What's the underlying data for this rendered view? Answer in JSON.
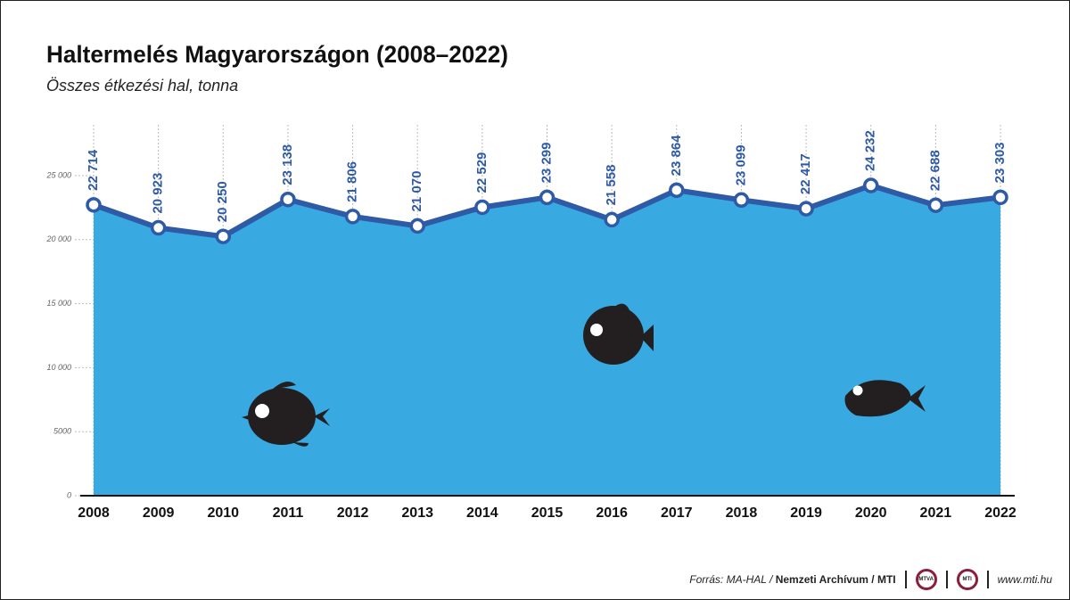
{
  "chart_data": {
    "type": "area",
    "title": "Haltermelés Magyarországon (2008–2022)",
    "subtitle": "Összes étkezési hal, tonna",
    "categories": [
      "2008",
      "2009",
      "2010",
      "2011",
      "2012",
      "2013",
      "2014",
      "2015",
      "2016",
      "2017",
      "2018",
      "2019",
      "2020",
      "2021",
      "2022"
    ],
    "values": [
      22714,
      20923,
      20250,
      23138,
      21806,
      21070,
      22529,
      23299,
      21558,
      23864,
      23099,
      22417,
      24232,
      22688,
      23303
    ],
    "value_labels": [
      "22 714",
      "20 923",
      "20 250",
      "23 138",
      "21 806",
      "21 070",
      "22 529",
      "23 299",
      "21 558",
      "23 864",
      "23 099",
      "22 417",
      "24 232",
      "22 688",
      "23 303"
    ],
    "color": "#39a9e1",
    "line_color": "#2e5aa6",
    "ylim": [
      0,
      25000
    ],
    "yticks": [
      0,
      5000,
      {
        "value": 10000,
        "label": "10 000"
      },
      {
        "value": 15000,
        "label": "15 000"
      },
      {
        "value": 20000,
        "label": "20 000"
      },
      {
        "value": 25000,
        "label": "25 000"
      }
    ],
    "grid": true
  },
  "footer": {
    "source": "Forrás: MA-HAL / ",
    "archive": "Nemzeti Archívum / MTI",
    "logo1": "MTVA",
    "logo2": "MTI",
    "url": "www.mti.hu"
  }
}
